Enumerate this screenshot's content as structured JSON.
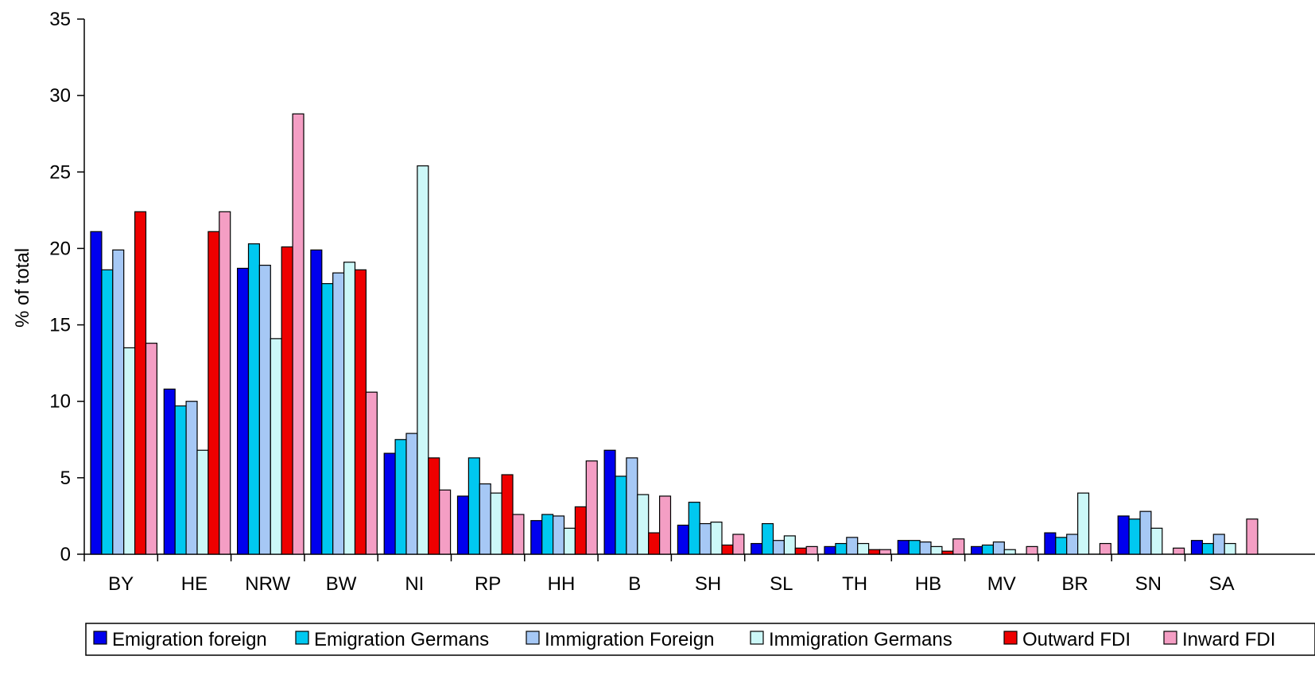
{
  "chart_data": {
    "type": "bar",
    "title": "",
    "xlabel": "",
    "ylabel": "% of total",
    "ylim": [
      0,
      35
    ],
    "yticks": [
      0,
      5,
      10,
      15,
      20,
      25,
      30,
      35
    ],
    "grid": false,
    "legend_position": "bottom",
    "categories": [
      "BY",
      "HE",
      "NRW",
      "BW",
      "NI",
      "RP",
      "HH",
      "B",
      "SH",
      "SL",
      "TH",
      "HB",
      "MV",
      "BR",
      "SN",
      "SA"
    ],
    "series": [
      {
        "name": "Emigration foreign",
        "color": "#0000ee",
        "values": [
          21.1,
          10.8,
          18.7,
          19.9,
          6.6,
          3.8,
          2.2,
          6.8,
          1.9,
          0.7,
          0.5,
          0.9,
          0.5,
          1.4,
          2.5,
          0.9
        ]
      },
      {
        "name": "Emigration Germans",
        "color": "#00c8f0",
        "values": [
          18.6,
          9.7,
          20.3,
          17.7,
          7.5,
          6.3,
          2.6,
          5.1,
          3.4,
          2.0,
          0.7,
          0.9,
          0.6,
          1.1,
          2.3,
          0.7
        ]
      },
      {
        "name": "Immigration Foreign",
        "color": "#a6c8f5",
        "values": [
          19.9,
          10.0,
          18.9,
          18.4,
          7.9,
          4.6,
          2.5,
          6.3,
          2.0,
          0.9,
          1.1,
          0.8,
          0.8,
          1.3,
          2.8,
          1.3
        ]
      },
      {
        "name": "Immigration Germans",
        "color": "#ccf8f8",
        "values": [
          13.5,
          6.8,
          14.1,
          19.1,
          25.4,
          4.0,
          1.7,
          3.9,
          2.1,
          1.2,
          0.7,
          0.5,
          0.3,
          4.0,
          1.7,
          0.7
        ]
      },
      {
        "name": "Outward FDI",
        "color": "#ee0000",
        "values": [
          22.4,
          21.1,
          20.1,
          18.6,
          6.3,
          5.2,
          3.1,
          1.4,
          0.6,
          0.4,
          0.3,
          0.2,
          0.0,
          0.0,
          0.0,
          0.0
        ]
      },
      {
        "name": "Inward FDI",
        "color": "#f49ec4",
        "values": [
          13.8,
          22.4,
          28.8,
          10.6,
          4.2,
          2.6,
          6.1,
          3.8,
          1.3,
          0.5,
          0.3,
          1.0,
          0.5,
          0.7,
          0.4,
          2.3
        ]
      }
    ]
  }
}
